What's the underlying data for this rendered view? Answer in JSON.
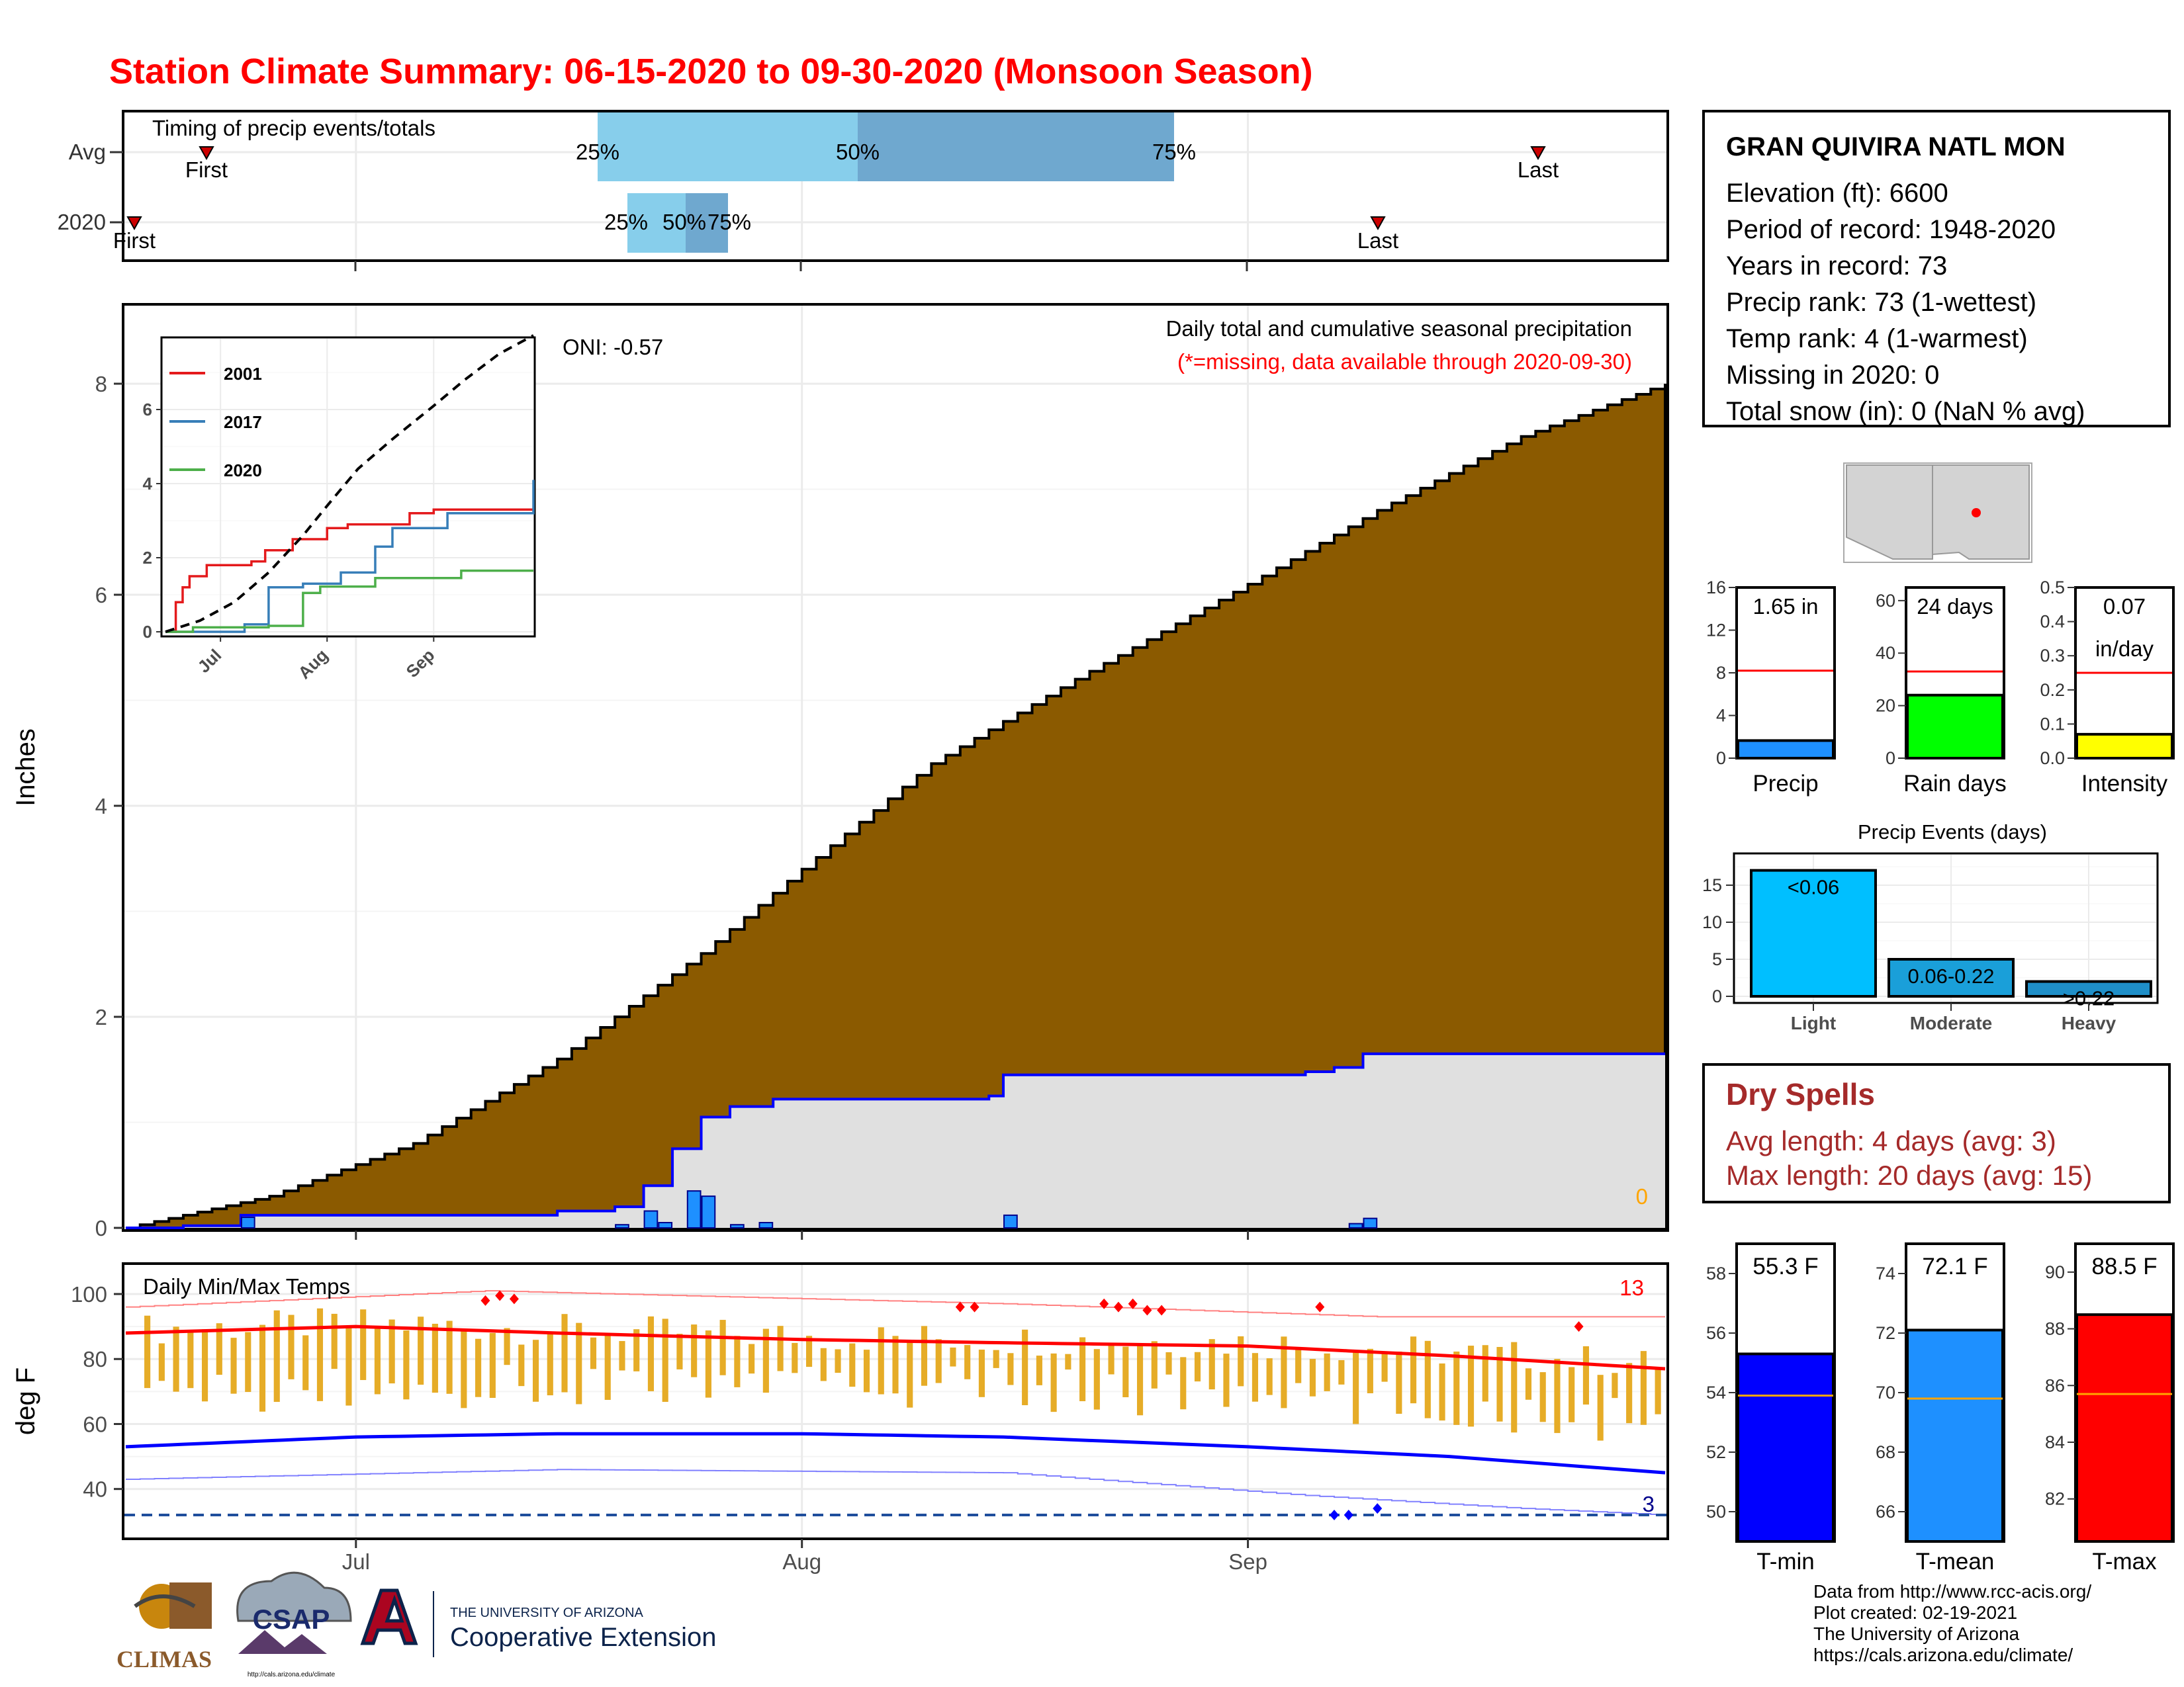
{
  "title": "Station Climate Summary: 06-15-2020 to 09-30-2020 (Monsoon Season)",
  "timing_panel": {
    "label": "Timing of precip events/totals",
    "rows": [
      "Avg",
      "2020"
    ],
    "avg": {
      "first": "First",
      "last": "Last",
      "p25": "25%",
      "p50": "50%",
      "p75": "75%"
    },
    "y2020": {
      "first": "First",
      "last": "Last",
      "p25": "25%",
      "p50": "50%",
      "p75": "75%"
    }
  },
  "station": {
    "name": "GRAN QUIVIRA NATL MON",
    "lines": [
      "Elevation (ft): 6600",
      "Period of record: 1948-2020",
      "Years in record: 73",
      "Precip rank: 73 (1-wettest)",
      "Temp rank: 4 (1-warmest)",
      "Missing in 2020: 0",
      "Total snow (in): 0 (NaN % avg)"
    ]
  },
  "precip_panel": {
    "title": "Daily total and cumulative seasonal precipitation",
    "subtitle": "(*=missing, data available through 2020-09-30)",
    "oni": "ONI: -0.57",
    "ylabel": "Inches",
    "yticks": [
      "0",
      "2",
      "4",
      "6",
      "8"
    ],
    "xticks": [
      "Jul",
      "Aug",
      "Sep"
    ],
    "corner_value": "0"
  },
  "inset": {
    "legend": [
      "2001",
      "2017",
      "2020"
    ],
    "yticks": [
      "0",
      "2",
      "4",
      "6"
    ],
    "xticks": [
      "Jul",
      "Aug",
      "Sep"
    ]
  },
  "bars_small": [
    {
      "value_label": "1.65 in",
      "value_label2": "",
      "xlabel": "Precip",
      "yticks": [
        "0",
        "4",
        "8",
        "12",
        "16"
      ]
    },
    {
      "value_label": "24 days",
      "value_label2": "",
      "xlabel": "Rain days",
      "yticks": [
        "0",
        "20",
        "40",
        "60"
      ]
    },
    {
      "value_label": "0.07",
      "value_label2": "in/day",
      "xlabel": "Intensity",
      "yticks": [
        "0.0",
        "0.1",
        "0.2",
        "0.3",
        "0.4",
        "0.5"
      ]
    }
  ],
  "events_panel": {
    "title": "Precip Events (days)",
    "yticks": [
      "0",
      "5",
      "10",
      "15"
    ],
    "categories": [
      "Light",
      "Moderate",
      "Heavy"
    ],
    "labels": [
      "<0.06",
      "0.06-0.22",
      ">0.22"
    ]
  },
  "dry_spells": {
    "title": "Dry Spells",
    "lines": [
      "Avg length: 4 days (avg: 3)",
      "Max length: 20 days (avg: 15)"
    ]
  },
  "temp_panel": {
    "title": "Daily Min/Max Temps",
    "ylabel": "deg F",
    "yticks": [
      "40",
      "60",
      "80",
      "100"
    ],
    "xticks": [
      "Jul",
      "Aug",
      "Sep"
    ],
    "count_hot": "13",
    "count_cold": "3"
  },
  "temp_bars": [
    {
      "value_label": "55.3 F",
      "xlabel": "T-min",
      "yticks": [
        "50",
        "52",
        "54",
        "56",
        "58"
      ]
    },
    {
      "value_label": "72.1 F",
      "xlabel": "T-mean",
      "yticks": [
        "66",
        "68",
        "70",
        "72",
        "74"
      ]
    },
    {
      "value_label": "88.5 F",
      "xlabel": "T-max",
      "yticks": [
        "82",
        "84",
        "86",
        "88",
        "90"
      ]
    }
  ],
  "logos": {
    "climas": "CLIMAS",
    "csap": "CSAP",
    "ua_line1": "THE UNIVERSITY OF ARIZONA",
    "ua_line2": "Cooperative Extension",
    "csap_url": "http://cals.arizona.edu/climate"
  },
  "credits": [
    "Data from http://www.rcc-acis.org/",
    "Plot created: 02-19-2021",
    "The University of Arizona",
    "https://cals.arizona.edu/climate/"
  ],
  "colors": {
    "title": "#ff0000",
    "cumulative_avg": "#8b5a00",
    "cumulative_2020": "#e0e0e0",
    "precip_bar": "#1e90ff",
    "range_bar": "#e6ac27",
    "tmax_line": "#ff0000",
    "tmin_line": "#0000ff",
    "light": "#00bfff",
    "moderate": "#1a9fd9",
    "heavy": "#1f8fc8"
  },
  "chart_data": [
    {
      "type": "area",
      "title": "Daily total and cumulative seasonal precipitation",
      "ylabel": "Inches",
      "ylim": [
        0,
        8.7
      ],
      "x_start": "2020-06-15",
      "x_end": "2020-09-30",
      "avg_cumulative": [
        {
          "x": "2020-06-15",
          "y": 0.0
        },
        {
          "x": "2020-06-25",
          "y": 0.3
        },
        {
          "x": "2020-07-05",
          "y": 0.8
        },
        {
          "x": "2020-07-15",
          "y": 1.6
        },
        {
          "x": "2020-07-25",
          "y": 2.6
        },
        {
          "x": "2020-08-01",
          "y": 3.4
        },
        {
          "x": "2020-08-10",
          "y": 4.4
        },
        {
          "x": "2020-08-20",
          "y": 5.2
        },
        {
          "x": "2020-09-01",
          "y": 6.1
        },
        {
          "x": "2020-09-10",
          "y": 6.8
        },
        {
          "x": "2020-09-20",
          "y": 7.5
        },
        {
          "x": "2020-09-30",
          "y": 8.0
        }
      ],
      "cumulative_2020": [
        {
          "x": "2020-06-15",
          "y": 0.0
        },
        {
          "x": "2020-06-19",
          "y": 0.02
        },
        {
          "x": "2020-06-23",
          "y": 0.12
        },
        {
          "x": "2020-07-15",
          "y": 0.16
        },
        {
          "x": "2020-07-19",
          "y": 0.2
        },
        {
          "x": "2020-07-21",
          "y": 0.4
        },
        {
          "x": "2020-07-23",
          "y": 0.75
        },
        {
          "x": "2020-07-25",
          "y": 1.05
        },
        {
          "x": "2020-07-27",
          "y": 1.15
        },
        {
          "x": "2020-07-30",
          "y": 1.22
        },
        {
          "x": "2020-08-14",
          "y": 1.25
        },
        {
          "x": "2020-08-15",
          "y": 1.45
        },
        {
          "x": "2020-09-05",
          "y": 1.48
        },
        {
          "x": "2020-09-07",
          "y": 1.52
        },
        {
          "x": "2020-09-09",
          "y": 1.65
        },
        {
          "x": "2020-09-30",
          "y": 1.65
        }
      ],
      "daily_2020": [
        {
          "x": "2020-06-23",
          "y": 0.1
        },
        {
          "x": "2020-07-19",
          "y": 0.03
        },
        {
          "x": "2020-07-21",
          "y": 0.16
        },
        {
          "x": "2020-07-22",
          "y": 0.05
        },
        {
          "x": "2020-07-24",
          "y": 0.35
        },
        {
          "x": "2020-07-25",
          "y": 0.3
        },
        {
          "x": "2020-07-27",
          "y": 0.03
        },
        {
          "x": "2020-07-29",
          "y": 0.05
        },
        {
          "x": "2020-08-15",
          "y": 0.12
        },
        {
          "x": "2020-09-08",
          "y": 0.04
        },
        {
          "x": "2020-09-09",
          "y": 0.09
        }
      ]
    },
    {
      "type": "line",
      "title": "",
      "series": [
        {
          "name": "2001",
          "points": [
            {
              "x": "2020-06-15",
              "y": 0
            },
            {
              "x": "2020-06-18",
              "y": 0.8
            },
            {
              "x": "2020-06-20",
              "y": 1.2
            },
            {
              "x": "2020-06-22",
              "y": 1.5
            },
            {
              "x": "2020-06-27",
              "y": 1.8
            },
            {
              "x": "2020-07-10",
              "y": 1.9
            },
            {
              "x": "2020-07-14",
              "y": 2.2
            },
            {
              "x": "2020-07-22",
              "y": 2.5
            },
            {
              "x": "2020-08-01",
              "y": 2.8
            },
            {
              "x": "2020-08-07",
              "y": 2.9
            },
            {
              "x": "2020-08-25",
              "y": 3.2
            },
            {
              "x": "2020-09-01",
              "y": 3.3
            },
            {
              "x": "2020-09-30",
              "y": 3.3
            }
          ]
        },
        {
          "name": "2017",
          "points": [
            {
              "x": "2020-06-15",
              "y": 0
            },
            {
              "x": "2020-07-08",
              "y": 0.2
            },
            {
              "x": "2020-07-15",
              "y": 1.2
            },
            {
              "x": "2020-07-25",
              "y": 1.3
            },
            {
              "x": "2020-08-05",
              "y": 1.6
            },
            {
              "x": "2020-08-15",
              "y": 2.3
            },
            {
              "x": "2020-08-20",
              "y": 2.8
            },
            {
              "x": "2020-09-05",
              "y": 3.2
            },
            {
              "x": "2020-09-28",
              "y": 3.2
            },
            {
              "x": "2020-09-30",
              "y": 4.1
            }
          ]
        },
        {
          "name": "2020",
          "points": [
            {
              "x": "2020-06-15",
              "y": 0
            },
            {
              "x": "2020-06-23",
              "y": 0.12
            },
            {
              "x": "2020-07-15",
              "y": 0.16
            },
            {
              "x": "2020-07-25",
              "y": 1.05
            },
            {
              "x": "2020-07-30",
              "y": 1.22
            },
            {
              "x": "2020-08-15",
              "y": 1.45
            },
            {
              "x": "2020-09-09",
              "y": 1.65
            },
            {
              "x": "2020-09-30",
              "y": 1.65
            }
          ]
        },
        {
          "name": "",
          "style": "dashed",
          "points": [
            {
              "x": "2020-06-15",
              "y": 0
            },
            {
              "x": "2020-06-25",
              "y": 0.3
            },
            {
              "x": "2020-07-05",
              "y": 0.8
            },
            {
              "x": "2020-07-15",
              "y": 1.6
            },
            {
              "x": "2020-07-25",
              "y": 2.6
            },
            {
              "x": "2020-08-01",
              "y": 3.4
            },
            {
              "x": "2020-08-10",
              "y": 4.4
            },
            {
              "x": "2020-08-20",
              "y": 5.2
            },
            {
              "x": "2020-09-01",
              "y": 6.1
            },
            {
              "x": "2020-09-10",
              "y": 6.8
            },
            {
              "x": "2020-09-20",
              "y": 7.5
            },
            {
              "x": "2020-09-30",
              "y": 8.0
            }
          ]
        }
      ],
      "ylim": [
        0,
        7.5
      ]
    },
    {
      "type": "bar",
      "title": "Daily Min/Max Temps",
      "ylabel": "deg F",
      "ylim": [
        32,
        108
      ],
      "x_start": "2020-06-15",
      "x_end": "2020-09-30",
      "tmax_avg": [
        {
          "x": "2020-06-15",
          "y": 88
        },
        {
          "x": "2020-07-01",
          "y": 90
        },
        {
          "x": "2020-07-15",
          "y": 88
        },
        {
          "x": "2020-08-01",
          "y": 86
        },
        {
          "x": "2020-08-15",
          "y": 85
        },
        {
          "x": "2020-09-01",
          "y": 84
        },
        {
          "x": "2020-09-15",
          "y": 81
        },
        {
          "x": "2020-09-30",
          "y": 77
        }
      ],
      "tmin_avg": [
        {
          "x": "2020-06-15",
          "y": 53
        },
        {
          "x": "2020-07-01",
          "y": 56
        },
        {
          "x": "2020-07-15",
          "y": 57
        },
        {
          "x": "2020-08-01",
          "y": 57
        },
        {
          "x": "2020-08-15",
          "y": 56
        },
        {
          "x": "2020-09-01",
          "y": 53
        },
        {
          "x": "2020-09-15",
          "y": 50
        },
        {
          "x": "2020-09-30",
          "y": 45
        }
      ],
      "tmax_record_approx": [
        {
          "x": "2020-06-15",
          "y": 96
        },
        {
          "x": "2020-07-10",
          "y": 101
        },
        {
          "x": "2020-08-15",
          "y": 97
        },
        {
          "x": "2020-09-10",
          "y": 93
        },
        {
          "x": "2020-09-30",
          "y": 93
        }
      ],
      "tmin_record_approx": [
        {
          "x": "2020-06-15",
          "y": 43
        },
        {
          "x": "2020-07-15",
          "y": 46
        },
        {
          "x": "2020-08-15",
          "y": 45
        },
        {
          "x": "2020-09-05",
          "y": 38
        },
        {
          "x": "2020-09-20",
          "y": 34
        },
        {
          "x": "2020-09-30",
          "y": 32
        }
      ],
      "freezing_line": 32
    },
    {
      "type": "bar",
      "categories": [
        "Precip",
        "Rain days",
        "Intensity"
      ],
      "values": [
        1.65,
        24,
        0.07
      ],
      "averages": [
        8.2,
        33,
        0.25
      ]
    },
    {
      "type": "bar",
      "title": "Precip Events (days)",
      "categories": [
        "Light",
        "Moderate",
        "Heavy"
      ],
      "values": [
        17,
        5,
        2
      ]
    },
    {
      "type": "bar",
      "categories": [
        "T-min",
        "T-mean",
        "T-max"
      ],
      "values": [
        55.3,
        72.1,
        88.5
      ],
      "averages": [
        53.9,
        69.8,
        85.7
      ]
    }
  ]
}
